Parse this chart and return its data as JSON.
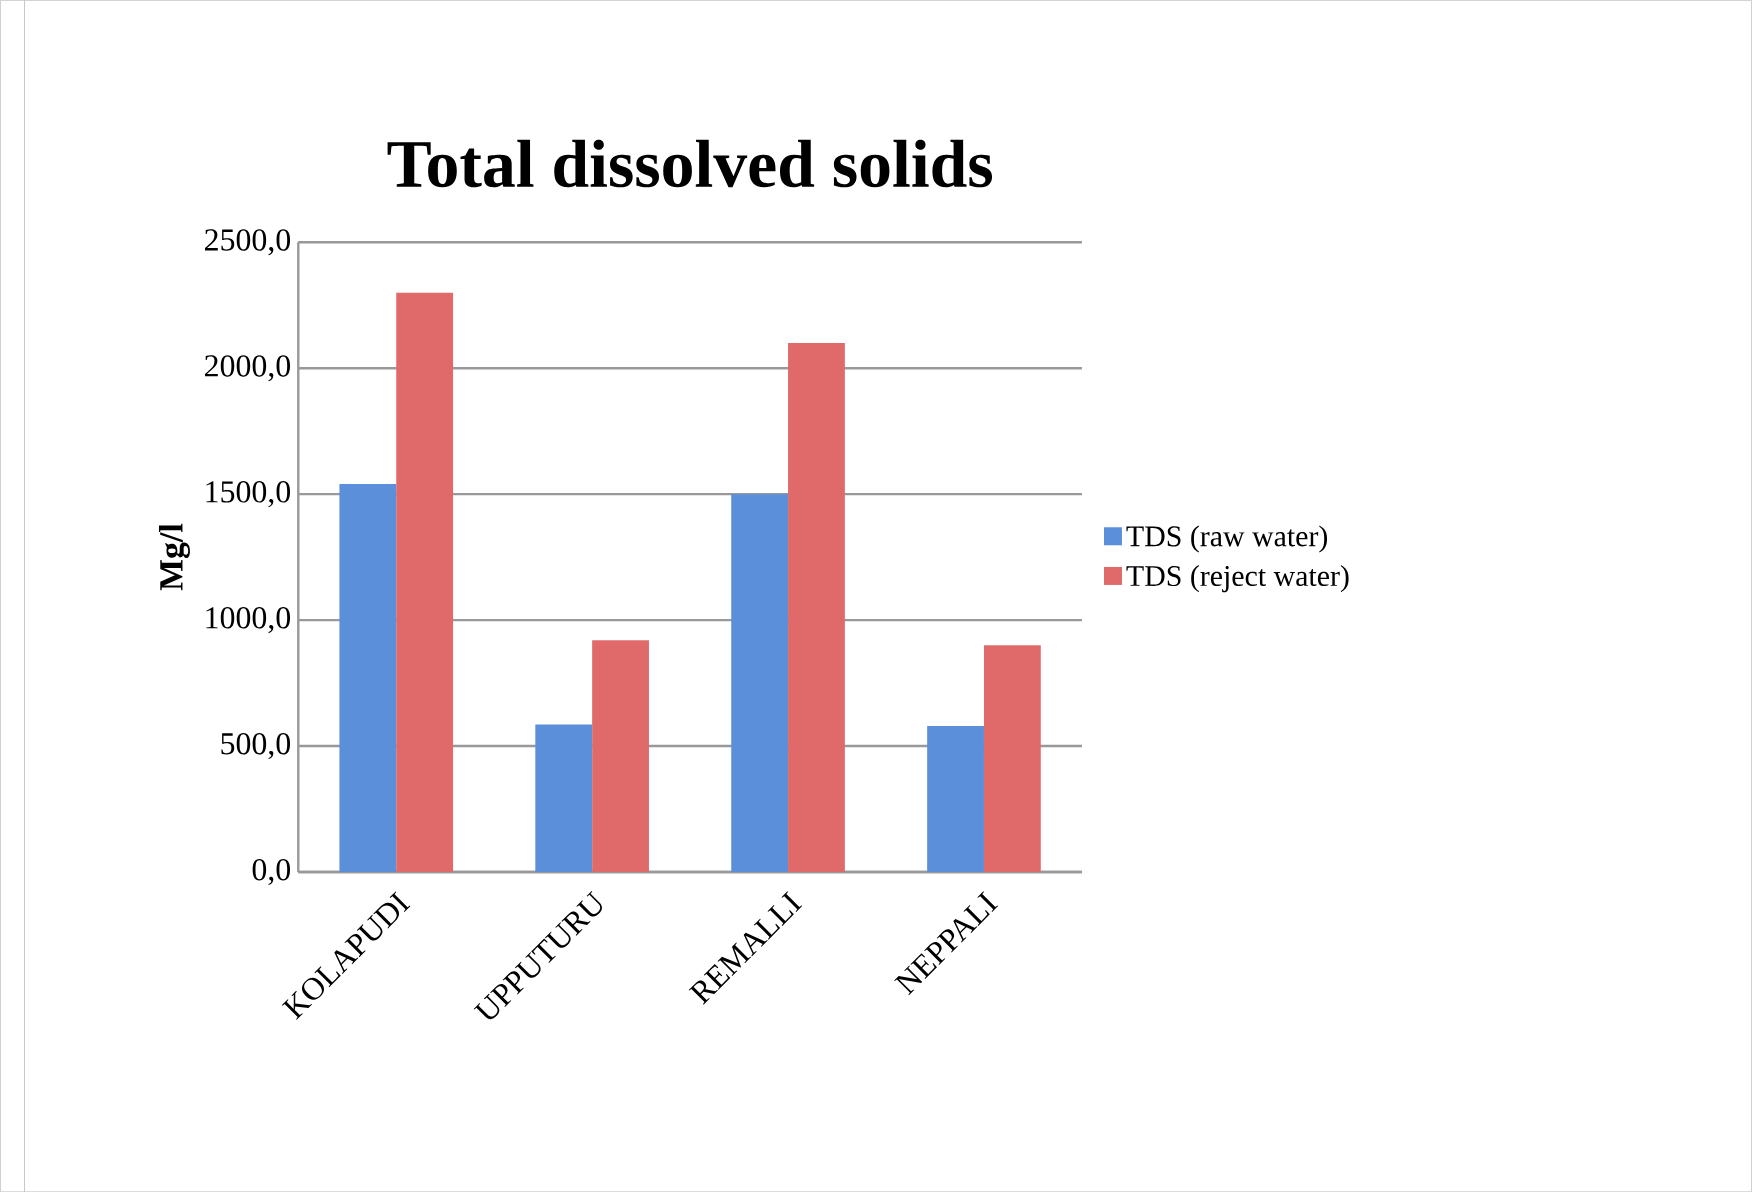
{
  "chart_data": {
    "type": "bar",
    "title": "Total dissolved solids",
    "ylabel": "Mg/l",
    "categories": [
      "KOLAPUDI",
      "UPPUTURU",
      "REMALLI",
      "NEPPALI"
    ],
    "series": [
      {
        "name": "TDS (raw water)",
        "color": "#5b8fd9",
        "values": [
          1540,
          585,
          1500,
          580
        ]
      },
      {
        "name": "TDS (reject water)",
        "color": "#e06a6a",
        "values": [
          2300,
          920,
          2100,
          900
        ]
      }
    ],
    "ylim": [
      0,
      2500
    ],
    "yticks": [
      {
        "value": 0,
        "label": "0,0"
      },
      {
        "value": 500,
        "label": "500,0"
      },
      {
        "value": 1000,
        "label": "1000,0"
      },
      {
        "value": 1500,
        "label": "1500,0"
      },
      {
        "value": 2000,
        "label": "2000,0"
      },
      {
        "value": 2500,
        "label": "2500,0"
      }
    ],
    "grid": "y",
    "legend": "right"
  }
}
